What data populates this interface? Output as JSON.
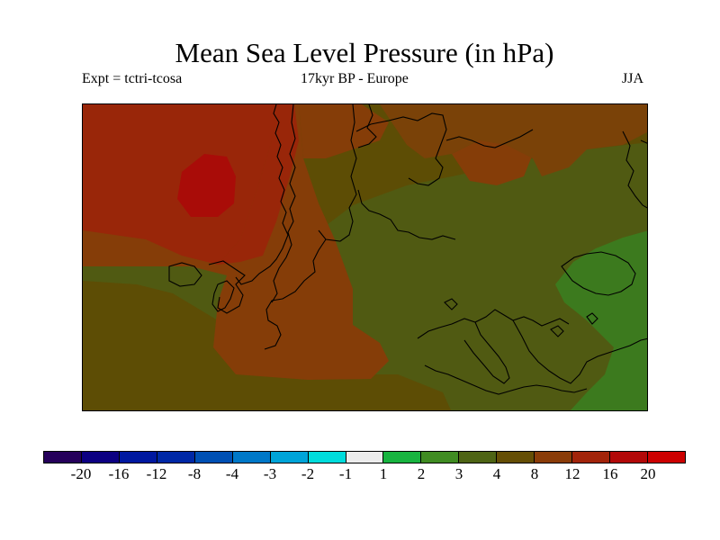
{
  "title": "Mean Sea Level Pressure (in hPa)",
  "subtitle_left": "Expt = tctri-tcosa",
  "subtitle_center": "17kyr BP - Europe",
  "subtitle_right": "JJA",
  "map": {
    "region": "Europe",
    "colors": {
      "background_band_4_8": "#5d4d05",
      "band_3_4": "#505a12",
      "band_8_12": "#853d08",
      "band_12_16": "#992609",
      "band_16_20": "#a90c08",
      "band_2_3": "#3c7a1e",
      "coastline": "#000000"
    }
  },
  "colorbar": {
    "swatches": [
      {
        "color": "#25005a"
      },
      {
        "color": "#0c0082"
      },
      {
        "color": "#0018a0"
      },
      {
        "color": "#0028a6"
      },
      {
        "color": "#0050b4"
      },
      {
        "color": "#0078c8"
      },
      {
        "color": "#00a4d8"
      },
      {
        "color": "#00dcdc"
      },
      {
        "color": "#ececec"
      },
      {
        "color": "#18b440"
      },
      {
        "color": "#408c22"
      },
      {
        "color": "#4e6414"
      },
      {
        "color": "#654e05"
      },
      {
        "color": "#8a3c08"
      },
      {
        "color": "#a2240a"
      },
      {
        "color": "#b20808"
      },
      {
        "color": "#cc0000"
      }
    ],
    "labels": [
      "-20",
      "-16",
      "-12",
      "-8",
      "-4",
      "-3",
      "-2",
      "-1",
      "1",
      "2",
      "3",
      "4",
      "8",
      "12",
      "16",
      "20"
    ]
  }
}
